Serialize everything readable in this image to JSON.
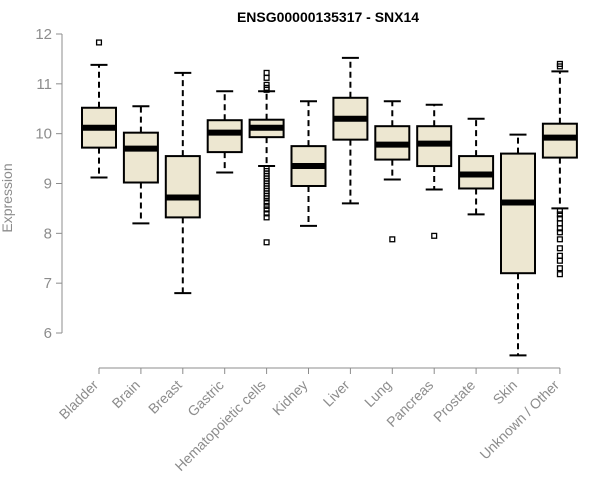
{
  "chart_data": {
    "type": "box",
    "title": "ENSG00000135317 - SNX14",
    "ylabel": "Expression",
    "xlabel": "",
    "ylim": [
      5.5,
      12
    ],
    "yticks": [
      6,
      7,
      8,
      9,
      10,
      11,
      12
    ],
    "box_fill": "#ede7d1",
    "groups": [
      {
        "name": "Bladder",
        "whisker_low": 9.12,
        "q1": 9.72,
        "median": 10.12,
        "q3": 10.52,
        "whisker_high": 11.38,
        "outliers": [
          11.83
        ]
      },
      {
        "name": "Brain",
        "whisker_low": 8.2,
        "q1": 9.02,
        "median": 9.7,
        "q3": 10.02,
        "whisker_high": 10.55,
        "outliers": []
      },
      {
        "name": "Breast",
        "whisker_low": 6.8,
        "q1": 8.32,
        "median": 8.72,
        "q3": 9.55,
        "whisker_high": 11.22,
        "outliers": []
      },
      {
        "name": "Gastric",
        "whisker_low": 9.22,
        "q1": 9.63,
        "median": 10.02,
        "q3": 10.27,
        "whisker_high": 10.85,
        "outliers": []
      },
      {
        "name": "Hematopoietic cells",
        "whisker_low": 9.35,
        "q1": 9.93,
        "median": 10.12,
        "q3": 10.28,
        "whisker_high": 10.85,
        "outliers": [
          11.22,
          11.12,
          10.98,
          10.92,
          10.88,
          9.3,
          9.25,
          9.2,
          9.15,
          9.1,
          9.05,
          9.0,
          8.95,
          8.9,
          8.85,
          8.8,
          8.75,
          8.7,
          8.62,
          8.55,
          8.48,
          8.4,
          8.32,
          7.82
        ]
      },
      {
        "name": "Kidney",
        "whisker_low": 8.15,
        "q1": 8.95,
        "median": 9.35,
        "q3": 9.75,
        "whisker_high": 10.65,
        "outliers": []
      },
      {
        "name": "Liver",
        "whisker_low": 8.6,
        "q1": 9.88,
        "median": 10.3,
        "q3": 10.72,
        "whisker_high": 11.52,
        "outliers": []
      },
      {
        "name": "Lung",
        "whisker_low": 9.08,
        "q1": 9.48,
        "median": 9.78,
        "q3": 10.15,
        "whisker_high": 10.65,
        "outliers": [
          7.88
        ]
      },
      {
        "name": "Pancreas",
        "whisker_low": 8.88,
        "q1": 9.35,
        "median": 9.8,
        "q3": 10.15,
        "whisker_high": 10.58,
        "outliers": [
          7.95
        ]
      },
      {
        "name": "Prostate",
        "whisker_low": 8.38,
        "q1": 8.9,
        "median": 9.18,
        "q3": 9.55,
        "whisker_high": 10.3,
        "outliers": []
      },
      {
        "name": "Skin",
        "whisker_low": 5.55,
        "q1": 7.2,
        "median": 8.62,
        "q3": 9.6,
        "whisker_high": 9.98,
        "outliers": []
      },
      {
        "name": "Unknown / Other",
        "whisker_low": 8.5,
        "q1": 9.52,
        "median": 9.92,
        "q3": 10.2,
        "whisker_high": 11.25,
        "outliers": [
          11.4,
          11.35,
          8.45,
          8.38,
          8.3,
          8.2,
          8.1,
          8.02,
          7.88,
          7.7,
          7.55,
          7.45,
          7.3,
          7.18
        ]
      }
    ]
  }
}
